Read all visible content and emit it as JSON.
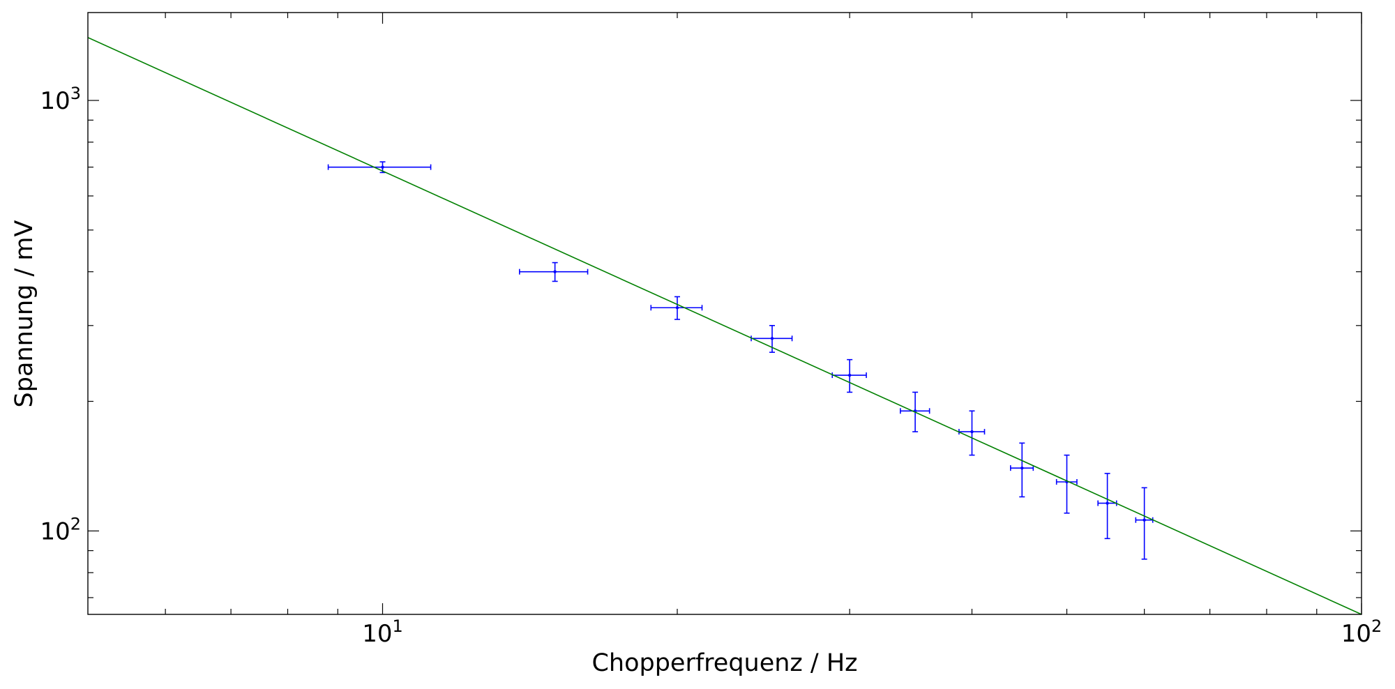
{
  "chart_data": {
    "type": "scatter",
    "title": "",
    "xlabel": "Chopperfrequenz / Hz",
    "ylabel": "Spannung / mV",
    "xscale": "log",
    "yscale": "log",
    "xlim": [
      5,
      100
    ],
    "ylim": [
      64,
      1600
    ],
    "grid": false,
    "legend": "none",
    "x_major_ticks": [
      {
        "value": 10,
        "base": "10",
        "exp": "1"
      },
      {
        "value": 100,
        "base": "10",
        "exp": "2"
      }
    ],
    "y_major_ticks": [
      {
        "value": 100,
        "base": "10",
        "exp": "2"
      },
      {
        "value": 1000,
        "base": "10",
        "exp": "3"
      }
    ],
    "x_minor_ticks": [
      6,
      7,
      8,
      9,
      20,
      30,
      40,
      50,
      60,
      70,
      80,
      90
    ],
    "y_minor_ticks": [
      70,
      80,
      90,
      200,
      300,
      400,
      500,
      600,
      700,
      800,
      900
    ],
    "series": [
      {
        "kind": "errorbar",
        "color": "#0000ff",
        "x": [
          10,
          15,
          20,
          25,
          30,
          35,
          40,
          45,
          50,
          55,
          60
        ],
        "y": [
          700,
          400,
          330,
          280,
          230,
          190,
          170,
          140,
          130,
          116,
          106
        ],
        "xerr": [
          1.2,
          1.2,
          1.2,
          1.2,
          1.2,
          1.2,
          1.2,
          1.2,
          1.2,
          1.2,
          1.2
        ],
        "yerr": [
          20,
          20,
          20,
          20,
          20,
          20,
          20,
          20,
          20,
          20,
          20
        ]
      },
      {
        "kind": "line",
        "color": "#008000",
        "x": [
          5,
          100
        ],
        "y": [
          1400,
          64
        ]
      }
    ]
  }
}
